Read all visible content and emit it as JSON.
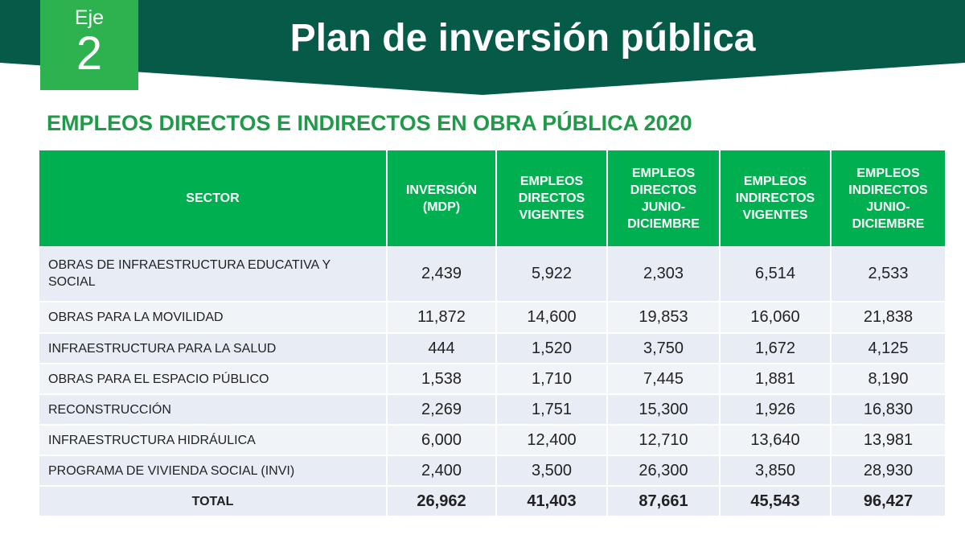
{
  "header": {
    "eje_label": "Eje",
    "eje_number": "2",
    "title": "Plan de inversión pública",
    "colors": {
      "banner": "#055a48",
      "eje_box": "#2eb24f"
    }
  },
  "subtitle": "EMPLEOS DIRECTOS E INDIRECTOS EN OBRA PÚBLICA 2020",
  "table": {
    "header_color": "#00b050",
    "columns": [
      [
        "SECTOR"
      ],
      [
        "INVERSIÓN",
        "(MDP)"
      ],
      [
        "EMPLEOS",
        "DIRECTOS",
        "VIGENTES"
      ],
      [
        "EMPLEOS",
        "DIRECTOS",
        "JUNIO-",
        "DICIEMBRE"
      ],
      [
        "EMPLEOS",
        "INDIRECTOS",
        "VIGENTES"
      ],
      [
        "EMPLEOS",
        "INDIRECTOS",
        "JUNIO-",
        "DICIEMBRE"
      ]
    ],
    "rows": [
      {
        "sector": [
          "OBRAS DE INFRAESTRUCTURA EDUCATIVA Y",
          "SOCIAL"
        ],
        "values": [
          "2,439",
          "5,922",
          "2,303",
          "6,514",
          "2,533"
        ]
      },
      {
        "sector": [
          "OBRAS PARA LA MOVILIDAD"
        ],
        "values": [
          "11,872",
          "14,600",
          "19,853",
          "16,060",
          "21,838"
        ]
      },
      {
        "sector": [
          "INFRAESTRUCTURA PARA LA SALUD"
        ],
        "values": [
          "444",
          "1,520",
          "3,750",
          "1,672",
          "4,125"
        ]
      },
      {
        "sector": [
          "OBRAS PARA EL ESPACIO PÚBLICO"
        ],
        "values": [
          "1,538",
          "1,710",
          "7,445",
          "1,881",
          "8,190"
        ]
      },
      {
        "sector": [
          "RECONSTRUCCIÓN"
        ],
        "values": [
          "2,269",
          "1,751",
          "15,300",
          "1,926",
          "16,830"
        ]
      },
      {
        "sector": [
          "INFRAESTRUCTURA HIDRÁULICA"
        ],
        "values": [
          "6,000",
          "12,400",
          "12,710",
          "13,640",
          "13,981"
        ]
      },
      {
        "sector": [
          "PROGRAMA DE VIVIENDA SOCIAL (INVI)"
        ],
        "values": [
          "2,400",
          "3,500",
          "26,300",
          "3,850",
          "28,930"
        ]
      }
    ],
    "total": {
      "label": "TOTAL",
      "values": [
        "26,962",
        "41,403",
        "87,661",
        "45,543",
        "96,427"
      ]
    }
  }
}
